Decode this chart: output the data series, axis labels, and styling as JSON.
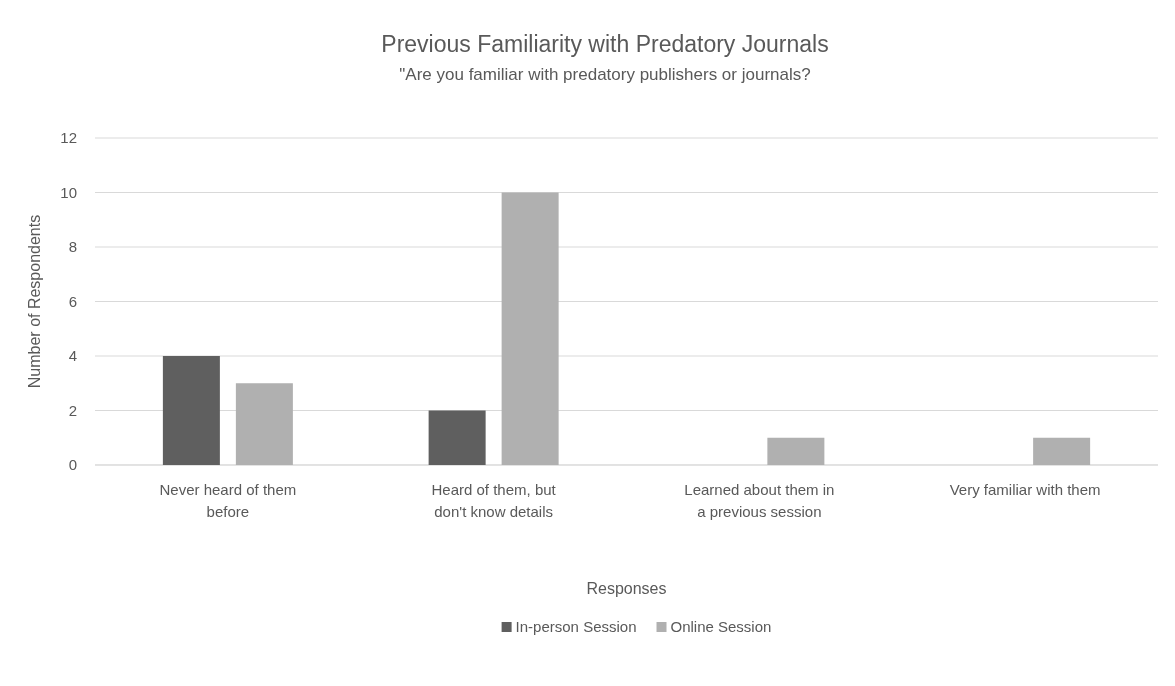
{
  "chart_data": {
    "type": "bar",
    "title": "Previous Familiarity with Predatory Journals",
    "subtitle": "\"Are you familiar with predatory publishers or journals?",
    "xlabel": "Responses",
    "ylabel": "Number of Respondents",
    "categories": [
      "Never heard of them before",
      "Heard of them, but don't know details",
      "Learned about them in a previous session",
      "Very familiar with them"
    ],
    "series": [
      {
        "name": "In-person Session",
        "color": "#5f5f5f",
        "values": [
          4,
          2,
          0,
          0
        ]
      },
      {
        "name": "Online Session",
        "color": "#b0b0b0",
        "values": [
          3,
          10,
          1,
          1
        ]
      }
    ],
    "ylim": [
      0,
      12
    ],
    "yticks": [
      0,
      2,
      4,
      6,
      8,
      10,
      12
    ],
    "grid": "y",
    "legend": "bottom"
  }
}
